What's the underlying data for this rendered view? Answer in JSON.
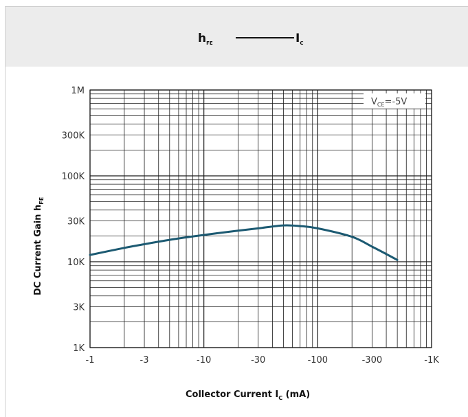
{
  "title": {
    "left": "h",
    "left_sub": "FE",
    "right": "I",
    "right_sub": "C"
  },
  "annotation": {
    "prefix": "V",
    "sub": "CE",
    "suffix": "=-5V"
  },
  "colors": {
    "curve": "#1c5a72",
    "grid": "#1a1a1a",
    "header": "#ececec"
  },
  "chart_data": {
    "type": "line",
    "title": "hFE — IC",
    "xlabel": "Collector Current I",
    "xlabel_sub": "C",
    "xlabel_unit": " (mA)",
    "ylabel": "DC Current Gain h",
    "ylabel_sub": "FE",
    "x_scale": "log",
    "y_scale": "log",
    "xlim": [
      1,
      1000
    ],
    "ylim": [
      1000,
      1000000
    ],
    "x_ticks": [
      1,
      3,
      10,
      30,
      100,
      300,
      1000
    ],
    "x_tick_labels": [
      "-1",
      "-3",
      "-10",
      "-30",
      "-100",
      "-300",
      "-1K"
    ],
    "y_ticks": [
      1000,
      3000,
      10000,
      30000,
      100000,
      300000,
      1000000
    ],
    "y_tick_labels": [
      "1K",
      "3K",
      "10K",
      "30K",
      "100K",
      "300K",
      "1M"
    ],
    "grid": true,
    "series": [
      {
        "x": [
          1,
          2,
          3,
          5,
          10,
          20,
          30,
          50,
          70,
          100,
          200,
          300,
          500
        ],
        "y": [
          12000,
          14500,
          16000,
          18000,
          20500,
          23000,
          24500,
          26500,
          26000,
          24500,
          19500,
          15000,
          10500
        ]
      }
    ]
  }
}
